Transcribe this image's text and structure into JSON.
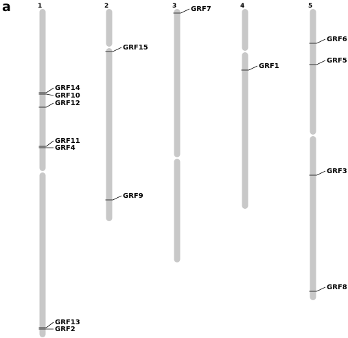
{
  "panel_label": "a",
  "chromosomes": [
    {
      "name": "1",
      "genes": [
        "GRF14",
        "GRF10",
        "GRF12",
        "GRF11",
        "GRF4",
        "GRF13",
        "GRF2"
      ]
    },
    {
      "name": "2",
      "genes": [
        "GRF15",
        "GRF9"
      ]
    },
    {
      "name": "3",
      "genes": [
        "GRF7"
      ]
    },
    {
      "name": "4",
      "genes": [
        "GRF1"
      ]
    },
    {
      "name": "5",
      "genes": [
        "GRF6",
        "GRF5",
        "GRF3",
        "GRF8"
      ]
    }
  ],
  "colors": {
    "chromosome": "#c8c8c8",
    "marker": "#000000",
    "text": "#000000"
  }
}
